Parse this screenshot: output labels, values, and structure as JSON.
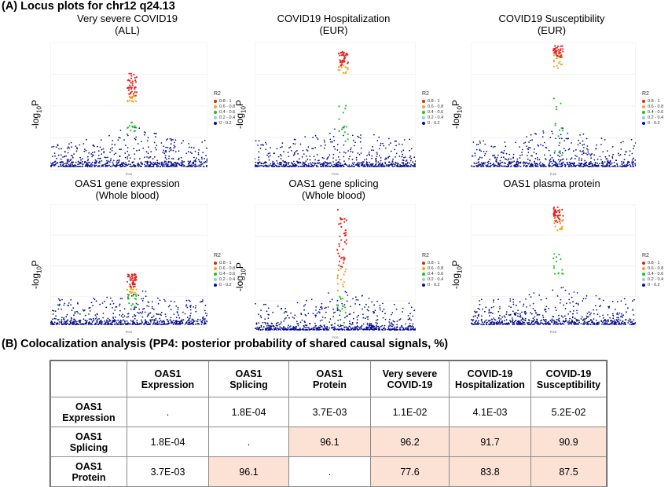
{
  "sectionA": {
    "title": "(A) Locus plots for chr12 q24.13"
  },
  "sectionB": {
    "title": "(B) Colocalization analysis (PP4: posterior probability of shared causal signals, %)"
  },
  "legend": {
    "title": "R2",
    "items": [
      {
        "label": "0.8 - 1",
        "color": "#e8201c"
      },
      {
        "label": "0.6 - 0.8",
        "color": "#f5a31b"
      },
      {
        "label": "0.4 - 0.6",
        "color": "#22c222"
      },
      {
        "label": "0.2 - 0.4",
        "color": "#8ecbf0"
      },
      {
        "label": "0 - 0.2",
        "color": "#0a118c"
      }
    ]
  },
  "plots": [
    {
      "title_line1": "Very severe COVID19",
      "title_line2": "(ALL)",
      "ylabel": "-log10P",
      "xlabel": "POS",
      "peak_x": 0.52,
      "red_band": [
        0.55,
        0.75
      ],
      "orange_band": [
        0.52,
        0.58
      ],
      "green_band": [
        0.28,
        0.36
      ]
    },
    {
      "title_line1": "COVID19 Hospitalization",
      "title_line2": "(EUR)",
      "ylabel": "-log10P",
      "xlabel": "POS",
      "peak_x": 0.55,
      "red_band": [
        0.8,
        0.93
      ],
      "orange_band": [
        0.75,
        0.82
      ],
      "green_band": [
        0.2,
        0.6
      ]
    },
    {
      "title_line1": "COVID19 Susceptibility",
      "title_line2": "(EUR)",
      "ylabel": "-log10P",
      "xlabel": "POS",
      "peak_x": 0.53,
      "red_band": [
        0.88,
        0.98
      ],
      "orange_band": [
        0.78,
        0.9
      ],
      "green_band": [
        0.05,
        0.55
      ]
    },
    {
      "title_line1": "OAS1 gene expression",
      "title_line2": "(Whole blood)",
      "ylabel": "-log10P",
      "xlabel": "POS",
      "peak_x": 0.52,
      "red_band": [
        0.3,
        0.42
      ],
      "orange_band": [
        0.25,
        0.3
      ],
      "green_band": [
        0.15,
        0.25
      ]
    },
    {
      "title_line1": "OAS1 gene splicing",
      "title_line2": "(Whole blood)",
      "ylabel": "-log10P",
      "xlabel": "POS",
      "peak_x": 0.54,
      "red_band": [
        0.5,
        0.97
      ],
      "orange_band": [
        0.3,
        0.5
      ],
      "green_band": [
        0.05,
        0.28
      ]
    },
    {
      "title_line1": "OAS1 plasma protein",
      "title_line2": "",
      "ylabel": "-log10P",
      "xlabel": "POS",
      "peak_x": 0.53,
      "red_band": [
        0.85,
        0.98
      ],
      "orange_band": [
        0.78,
        0.88
      ],
      "green_band": [
        0.4,
        0.6
      ]
    }
  ],
  "table": {
    "columns": [
      {
        "l1": "",
        "l2": ""
      },
      {
        "l1": "OAS1",
        "l2": "Expression"
      },
      {
        "l1": "OAS1",
        "l2": "Splicing"
      },
      {
        "l1": "OAS1",
        "l2": "Protein"
      },
      {
        "l1": "Very severe",
        "l2": "COVID-19"
      },
      {
        "l1": "COVID-19",
        "l2": "Hospitalization"
      },
      {
        "l1": "COVID-19",
        "l2": "Susceptibility"
      }
    ],
    "rows": [
      {
        "h1": "OAS1",
        "h2": "Expression",
        "cells": [
          ".",
          "1.8E-04",
          "3.7E-03",
          "1.1E-02",
          "4.1E-03",
          "5.2E-02"
        ],
        "shaded": [
          false,
          false,
          false,
          false,
          false,
          false
        ]
      },
      {
        "h1": "OAS1",
        "h2": "Splicing",
        "cells": [
          "1.8E-04",
          ".",
          "96.1",
          "96.2",
          "91.7",
          "90.9"
        ],
        "shaded": [
          false,
          false,
          true,
          true,
          true,
          true
        ]
      },
      {
        "h1": "OAS1",
        "h2": "Protein",
        "cells": [
          "3.7E-03",
          "96.1",
          ".",
          "77.6",
          "83.8",
          "87.5"
        ],
        "shaded": [
          false,
          true,
          false,
          true,
          true,
          true
        ]
      }
    ]
  }
}
